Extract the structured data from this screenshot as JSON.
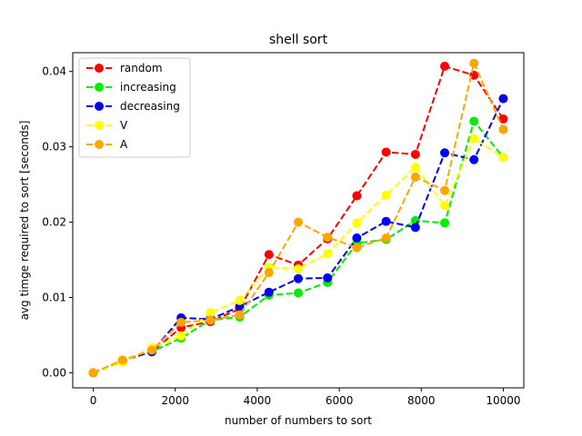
{
  "chart_data": {
    "type": "line",
    "title": "shell sort",
    "xlabel": "number of numbers to sort",
    "ylabel": "avg timge required to sort  [seconds]",
    "xlim": [
      -500,
      10500
    ],
    "ylim": [
      -0.002,
      0.0425
    ],
    "xticks": [
      0,
      2000,
      4000,
      6000,
      8000,
      10000
    ],
    "xtick_labels": [
      "0",
      "2000",
      "4000",
      "6000",
      "8000",
      "10000"
    ],
    "yticks": [
      0.0,
      0.01,
      0.02,
      0.03,
      0.04
    ],
    "ytick_labels": [
      "0.00",
      "0.01",
      "0.02",
      "0.03",
      "0.04"
    ],
    "grid": false,
    "legend_position": "top-left",
    "x": [
      0,
      714,
      1428,
      2142,
      2857,
      3571,
      4285,
      5000,
      5714,
      6428,
      7142,
      7857,
      8571,
      9285,
      10000
    ],
    "series": [
      {
        "name": "random",
        "color": "#ff0000",
        "values": [
          0.0,
          0.0016,
          0.0028,
          0.006,
          0.0068,
          0.0085,
          0.0157,
          0.0143,
          0.0178,
          0.0235,
          0.0293,
          0.029,
          0.0407,
          0.0395,
          0.0337
        ]
      },
      {
        "name": "increasing",
        "color": "#00ee00",
        "values": [
          0.0,
          0.0016,
          0.0028,
          0.0046,
          0.007,
          0.0074,
          0.0103,
          0.0106,
          0.012,
          0.0172,
          0.0177,
          0.0202,
          0.0199,
          0.0334,
          0.0286
        ]
      },
      {
        "name": "decreasing",
        "color": "#0000ee",
        "values": [
          0.0,
          0.0016,
          0.0028,
          0.0073,
          0.0071,
          0.0088,
          0.0107,
          0.0125,
          0.0126,
          0.0179,
          0.0201,
          0.0193,
          0.0292,
          0.0283,
          0.0364
        ]
      },
      {
        "name": "V",
        "color": "#ffff00",
        "values": [
          0.0,
          0.0014,
          0.0033,
          0.0049,
          0.008,
          0.0096,
          0.014,
          0.0138,
          0.0158,
          0.0199,
          0.0236,
          0.0273,
          0.0222,
          0.0311,
          0.0286
        ]
      },
      {
        "name": "A",
        "color": "#ffa500",
        "values": [
          0.0,
          0.0017,
          0.003,
          0.0067,
          0.007,
          0.0077,
          0.0133,
          0.02,
          0.018,
          0.0166,
          0.0179,
          0.026,
          0.0242,
          0.0411,
          0.0323
        ]
      }
    ]
  }
}
